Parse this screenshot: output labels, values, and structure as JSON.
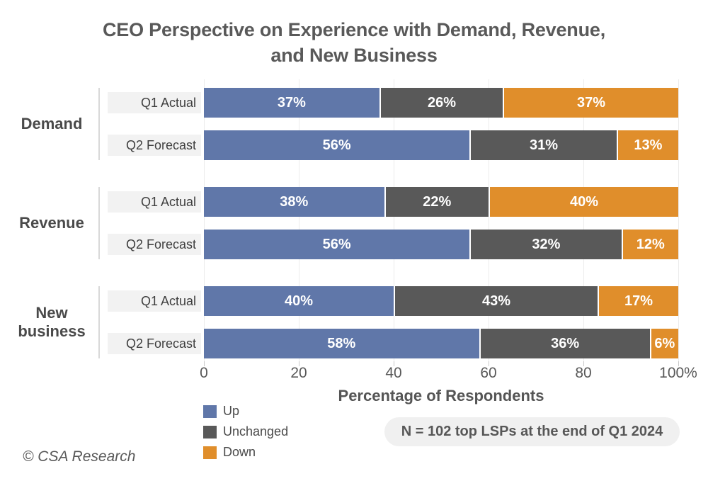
{
  "title": {
    "line1": "CEO Perspective on Experience with Demand, Revenue,",
    "line2": "and New Business"
  },
  "colors": {
    "up": "#6077A9",
    "unchanged": "#595959",
    "down": "#E08E2B",
    "title_text": "#595959",
    "row_label_bg": "#F2F2F2",
    "note_bg": "#F0F0F0",
    "gridline": "#ECECEC"
  },
  "chart_data": {
    "type": "bar",
    "orientation": "horizontal",
    "stacked": true,
    "title": "CEO Perspective on Experience with Demand, Revenue, and New Business",
    "xlabel": "Percentage of Respondents",
    "xlim": [
      0,
      100
    ],
    "xtick_values": [
      0,
      20,
      40,
      60,
      80,
      100
    ],
    "series_names": [
      "Up",
      "Unchanged",
      "Down"
    ],
    "grid": "vertical",
    "legend_position": "bottom-left",
    "groups": [
      {
        "label": "Demand"
      },
      {
        "label": "Revenue"
      },
      {
        "label": "New business"
      }
    ],
    "rows": [
      {
        "group": "Demand",
        "label": "Q1 Actual",
        "up": 37,
        "unchanged": 26,
        "down": 37,
        "up_text": "37%",
        "unchanged_text": "26%",
        "down_text": "37%"
      },
      {
        "group": "Demand",
        "label": "Q2 Forecast",
        "up": 56,
        "unchanged": 31,
        "down": 13,
        "up_text": "56%",
        "unchanged_text": "31%",
        "down_text": "13%"
      },
      {
        "group": "Revenue",
        "label": "Q1 Actual",
        "up": 38,
        "unchanged": 22,
        "down": 40,
        "up_text": "38%",
        "unchanged_text": "22%",
        "down_text": "40%"
      },
      {
        "group": "Revenue",
        "label": "Q2 Forecast",
        "up": 56,
        "unchanged": 32,
        "down": 12,
        "up_text": "56%",
        "unchanged_text": "32%",
        "down_text": "12%"
      },
      {
        "group": "New business",
        "label": "Q1 Actual",
        "up": 40,
        "unchanged": 43,
        "down": 17,
        "up_text": "40%",
        "unchanged_text": "43%",
        "down_text": "17%"
      },
      {
        "group": "New business",
        "label": "Q2 Forecast",
        "up": 58,
        "unchanged": 36,
        "down": 6,
        "up_text": "58%",
        "unchanged_text": "36%",
        "down_text": "6%"
      }
    ]
  },
  "axis": {
    "ticks": [
      "0",
      "20",
      "40",
      "60",
      "80",
      "100%"
    ],
    "label": "Percentage of Respondents"
  },
  "legend": {
    "items": [
      {
        "label": "Up"
      },
      {
        "label": "Unchanged"
      },
      {
        "label": "Down"
      }
    ]
  },
  "note": {
    "text": "N = 102 top LSPs at the end of Q1 2024"
  },
  "footer": {
    "copyright": "© CSA Research"
  }
}
